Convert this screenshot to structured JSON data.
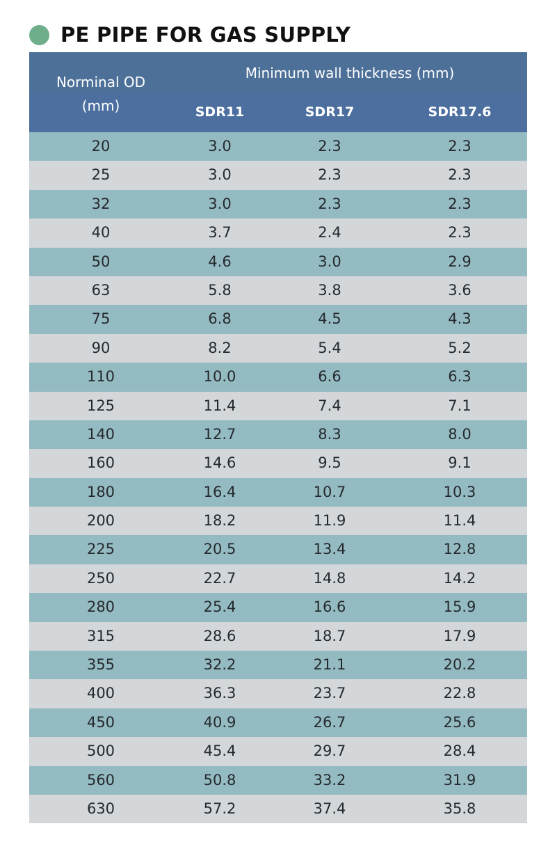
{
  "title": "PE PIPE FOR GAS SUPPLY",
  "colors": {
    "dot": "#6fae8a",
    "header_top": "#4d7099",
    "header_bottom": "#4c6fa0",
    "row_odd": "#95bbc2",
    "row_even": "#d3d7da"
  },
  "table": {
    "header": {
      "od_line1": "Norminal OD",
      "od_line2": "(mm)",
      "group": "Minimum wall thickness (mm)",
      "col1": "SDR11",
      "col2": "SDR17",
      "col3": "SDR17.6"
    },
    "rows": [
      [
        "20",
        "3.0",
        "2.3",
        "2.3"
      ],
      [
        "25",
        "3.0",
        "2.3",
        "2.3"
      ],
      [
        "32",
        "3.0",
        "2.3",
        "2.3"
      ],
      [
        "40",
        "3.7",
        "2.4",
        "2.3"
      ],
      [
        "50",
        "4.6",
        "3.0",
        "2.9"
      ],
      [
        "63",
        "5.8",
        "3.8",
        "3.6"
      ],
      [
        "75",
        "6.8",
        "4.5",
        "4.3"
      ],
      [
        "90",
        "8.2",
        "5.4",
        "5.2"
      ],
      [
        "110",
        "10.0",
        "6.6",
        "6.3"
      ],
      [
        "125",
        "11.4",
        "7.4",
        "7.1"
      ],
      [
        "140",
        "12.7",
        "8.3",
        "8.0"
      ],
      [
        "160",
        "14.6",
        "9.5",
        "9.1"
      ],
      [
        "180",
        "16.4",
        "10.7",
        "10.3"
      ],
      [
        "200",
        "18.2",
        "11.9",
        "11.4"
      ],
      [
        "225",
        "20.5",
        "13.4",
        "12.8"
      ],
      [
        "250",
        "22.7",
        "14.8",
        "14.2"
      ],
      [
        "280",
        "25.4",
        "16.6",
        "15.9"
      ],
      [
        "315",
        "28.6",
        "18.7",
        "17.9"
      ],
      [
        "355",
        "32.2",
        "21.1",
        "20.2"
      ],
      [
        "400",
        "36.3",
        "23.7",
        "22.8"
      ],
      [
        "450",
        "40.9",
        "26.7",
        "25.6"
      ],
      [
        "500",
        "45.4",
        "29.7",
        "28.4"
      ],
      [
        "560",
        "50.8",
        "33.2",
        "31.9"
      ],
      [
        "630",
        "57.2",
        "37.4",
        "35.8"
      ]
    ]
  }
}
